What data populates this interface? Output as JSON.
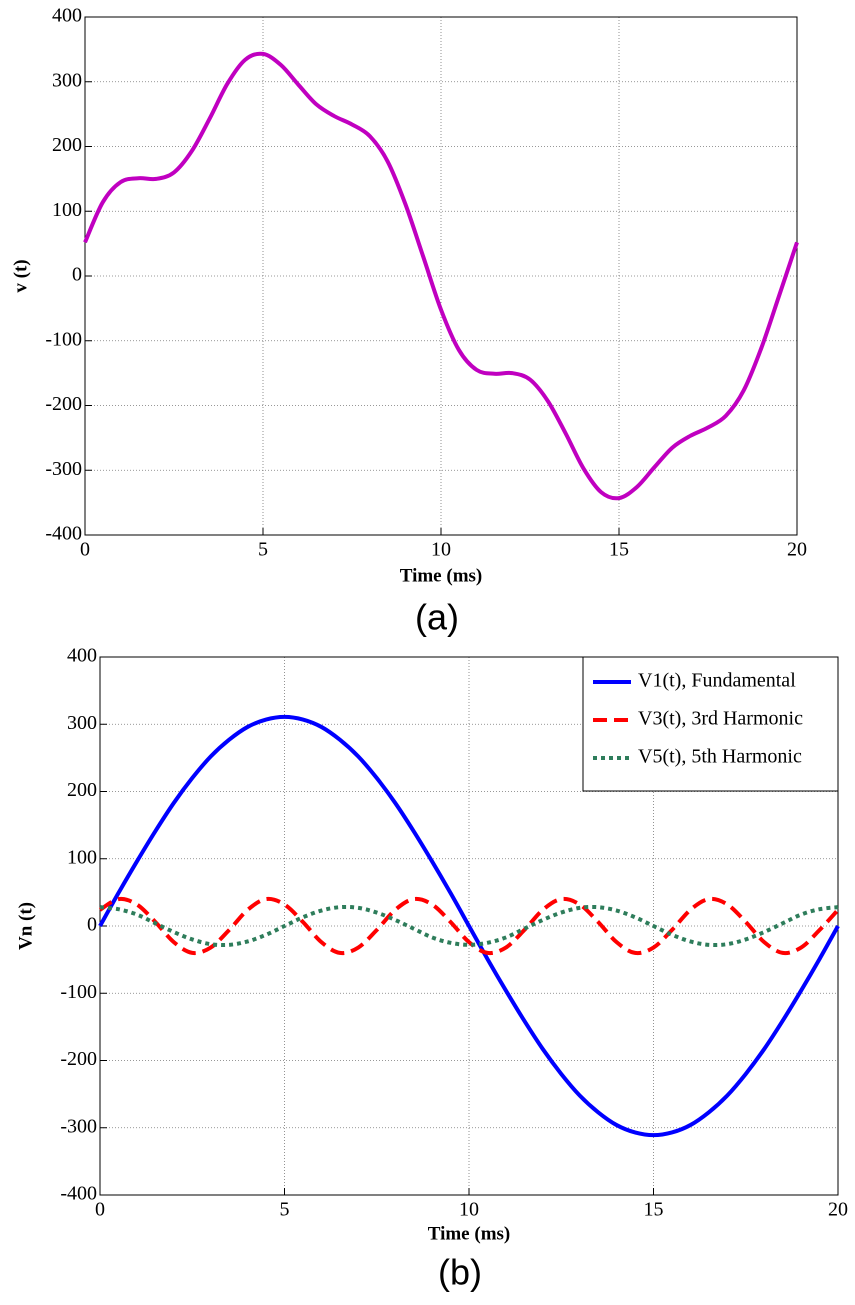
{
  "chart_data": [
    {
      "type": "line",
      "caption": "(a)",
      "xlabel": "Time (ms)",
      "ylabel": "v (t)",
      "color": "#c000c0",
      "grid": true,
      "x": [
        0,
        0.5,
        1,
        1.5,
        2,
        2.5,
        3,
        3.5,
        4,
        4.5,
        5,
        5.5,
        6,
        6.5,
        7,
        7.5,
        8,
        8.5,
        9,
        9.5,
        10,
        10.5,
        11,
        11.5,
        12,
        12.5,
        13,
        13.5,
        14,
        14.5,
        15,
        15.5,
        16,
        16.5,
        17,
        17.5,
        18,
        18.5,
        19,
        19.5,
        20
      ],
      "values": [
        52,
        114,
        145,
        151,
        150,
        160,
        193,
        243,
        297,
        334,
        343,
        326,
        295,
        265,
        247,
        234,
        216,
        177,
        111,
        30,
        -52,
        -114,
        -145,
        -151,
        -150,
        -160,
        -193,
        -243,
        -297,
        -334,
        -343,
        -326,
        -295,
        -265,
        -247,
        -234,
        -216,
        -177,
        -111,
        -30,
        52
      ],
      "xlim": [
        0,
        20
      ],
      "xticks": [
        0,
        5,
        10,
        15,
        20
      ],
      "ylim": [
        -400,
        400
      ],
      "yticks": [
        -400,
        -300,
        -200,
        -100,
        0,
        100,
        200,
        300,
        400
      ]
    },
    {
      "type": "line",
      "caption": "(b)",
      "xlabel": "Time (ms)",
      "ylabel": "Vn (t)",
      "grid": true,
      "legend": "upper right",
      "x": [
        0,
        0.5,
        1,
        1.5,
        2,
        2.5,
        3,
        3.5,
        4,
        4.5,
        5,
        5.5,
        6,
        6.5,
        7,
        7.5,
        8,
        8.5,
        9,
        9.5,
        10,
        10.5,
        11,
        11.5,
        12,
        12.5,
        13,
        13.5,
        14,
        14.5,
        15,
        15.5,
        16,
        16.5,
        17,
        17.5,
        18,
        18.5,
        19,
        19.5,
        20
      ],
      "series": [
        {
          "name": "V1(t), Fundamental",
          "color": "#0000ff",
          "dash": "solid",
          "values": [
            0,
            49,
            96,
            141,
            183,
            220,
            252,
            277,
            296,
            307,
            311,
            307,
            296,
            277,
            252,
            220,
            183,
            141,
            96,
            49,
            0,
            -49,
            -96,
            -141,
            -183,
            -220,
            -252,
            -277,
            -296,
            -307,
            -311,
            -307,
            -296,
            -277,
            -252,
            -220,
            -183,
            -141,
            -96,
            -49,
            0
          ]
        },
        {
          "name": "V3(t), 3rd Harmonic",
          "color": "#ff0000",
          "dash": "dashed",
          "values": [
            24,
            40,
            32,
            6,
            -24,
            -40,
            -32,
            -6,
            24,
            40,
            32,
            6,
            -24,
            -40,
            -32,
            -6,
            24,
            40,
            32,
            6,
            -24,
            -40,
            -32,
            -6,
            24,
            40,
            32,
            6,
            -24,
            -40,
            -32,
            -6,
            24,
            40,
            32,
            6,
            -24,
            -40,
            -32,
            -6,
            24
          ]
        },
        {
          "name": "V5(t), 5th Harmonic",
          "color": "#2e7d5b",
          "dash": "dotted",
          "values": [
            28,
            25,
            17,
            4,
            -9,
            -20,
            -27,
            -28,
            -23,
            -13,
            0,
            13,
            23,
            28,
            27,
            20,
            9,
            -4,
            -17,
            -25,
            -28,
            -25,
            -17,
            -4,
            9,
            20,
            27,
            28,
            23,
            13,
            0,
            -13,
            -23,
            -28,
            -27,
            -20,
            -9,
            4,
            17,
            25,
            28
          ]
        }
      ],
      "xlim": [
        0,
        20
      ],
      "xticks": [
        0,
        5,
        10,
        15,
        20
      ],
      "ylim": [
        -400,
        400
      ],
      "yticks": [
        -400,
        -300,
        -200,
        -100,
        0,
        100,
        200,
        300,
        400
      ]
    }
  ]
}
